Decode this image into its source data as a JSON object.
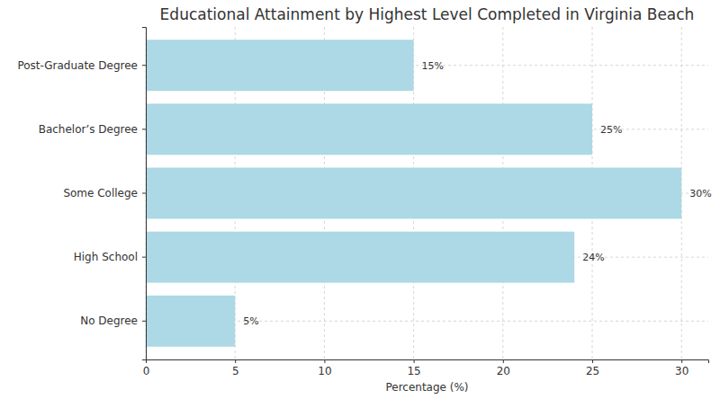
{
  "chart_data": {
    "type": "bar",
    "orientation": "horizontal",
    "title": "Educational Attainment by Highest Level Completed in Virginia Beach",
    "x_label": "Percentage (%)",
    "categories": [
      "No Degree",
      "High School",
      "Some College",
      "Bachelor’s Degree",
      "Post-Graduate Degree"
    ],
    "values": [
      5,
      24,
      30,
      25,
      15
    ],
    "value_labels": [
      "5%",
      "24%",
      "30%",
      "25%",
      "15%"
    ],
    "data_labels": true,
    "color": "#add8e6",
    "xlim": [
      0,
      31.5
    ],
    "xticks": [
      0,
      5,
      10,
      15,
      20,
      25,
      30
    ],
    "grid": true
  }
}
